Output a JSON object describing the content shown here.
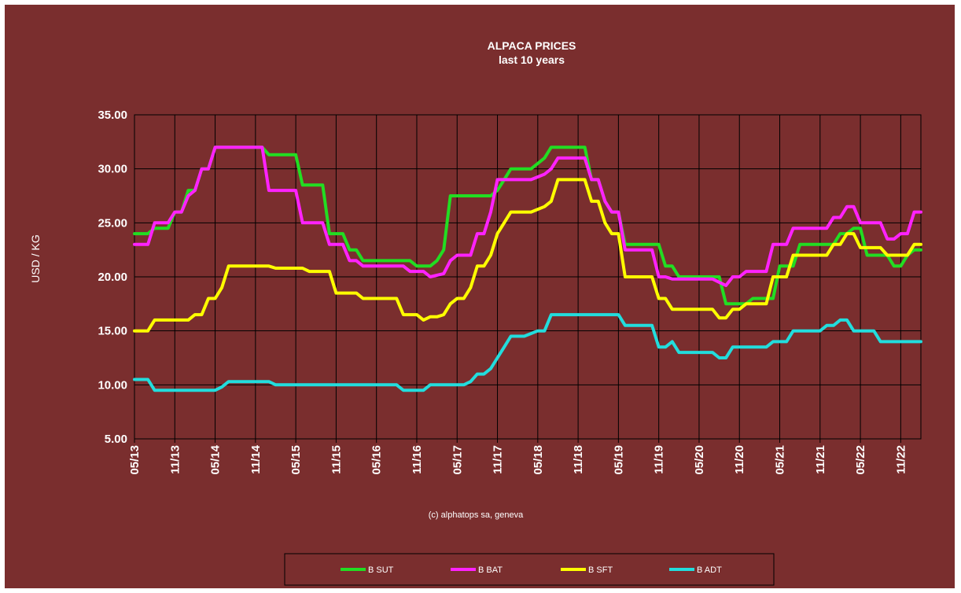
{
  "chart_data": {
    "type": "line",
    "title": "ALPACA PRICES",
    "subtitle": "last 10 years",
    "ylabel": "USD / KG",
    "xlabel": "",
    "credit": "(c) alphatops sa, geneva",
    "ylim": [
      5,
      35
    ],
    "yticks": [
      "5.00",
      "10.00",
      "15.00",
      "20.00",
      "25.00",
      "30.00",
      "35.00"
    ],
    "yticks_values": [
      5,
      10,
      15,
      20,
      25,
      30,
      35
    ],
    "xlim": [
      0,
      117
    ],
    "xticks": [
      "05/13",
      "11/13",
      "05/14",
      "11/14",
      "05/15",
      "11/15",
      "05/16",
      "11/16",
      "05/17",
      "11/17",
      "05/18",
      "11/18",
      "05/19",
      "11/19",
      "05/20",
      "11/20",
      "05/21",
      "11/21",
      "05/22",
      "11/22"
    ],
    "grid": true,
    "legend_position": "bottom",
    "background": "#7a2e2e",
    "series": [
      {
        "name": "B SUT",
        "color": "#22dd22",
        "points": [
          [
            0,
            24
          ],
          [
            2,
            24
          ],
          [
            3,
            24.5
          ],
          [
            5,
            24.5
          ],
          [
            6,
            26
          ],
          [
            7,
            26
          ],
          [
            8,
            28
          ],
          [
            9,
            28
          ],
          [
            10,
            30
          ],
          [
            11,
            30
          ],
          [
            12,
            32
          ],
          [
            19,
            32
          ],
          [
            20,
            31.3
          ],
          [
            24,
            31.3
          ],
          [
            25,
            28.5
          ],
          [
            28,
            28.5
          ],
          [
            29,
            24
          ],
          [
            31,
            24
          ],
          [
            32,
            22.5
          ],
          [
            33,
            22.5
          ],
          [
            34,
            21.5
          ],
          [
            41,
            21.5
          ],
          [
            42,
            21
          ],
          [
            44,
            21
          ],
          [
            45,
            21.5
          ],
          [
            46,
            22.5
          ],
          [
            47,
            27.5
          ],
          [
            53,
            27.5
          ],
          [
            54,
            28
          ],
          [
            55,
            29
          ],
          [
            56,
            30
          ],
          [
            59,
            30
          ],
          [
            61,
            31
          ],
          [
            62,
            32
          ],
          [
            67,
            32
          ],
          [
            68,
            29
          ],
          [
            69,
            29
          ],
          [
            70,
            27
          ],
          [
            71,
            26
          ],
          [
            72,
            26
          ],
          [
            73,
            23
          ],
          [
            78,
            23
          ],
          [
            79,
            21
          ],
          [
            80,
            21
          ],
          [
            81,
            20
          ],
          [
            87,
            20
          ],
          [
            88,
            17.5
          ],
          [
            91,
            17.5
          ],
          [
            92,
            18
          ],
          [
            95,
            18
          ],
          [
            96,
            21
          ],
          [
            98,
            21
          ],
          [
            99,
            23
          ],
          [
            104,
            23
          ],
          [
            105,
            24
          ],
          [
            106,
            24
          ],
          [
            107,
            24.5
          ],
          [
            108,
            24.5
          ],
          [
            109,
            22
          ],
          [
            112,
            22
          ],
          [
            113,
            21
          ],
          [
            114,
            21
          ],
          [
            115,
            22
          ],
          [
            116,
            22.5
          ],
          [
            117,
            22.5
          ]
        ]
      },
      {
        "name": "B BAT",
        "color": "#ff22ff",
        "points": [
          [
            0,
            23
          ],
          [
            2,
            23
          ],
          [
            3,
            25
          ],
          [
            5,
            25
          ],
          [
            6,
            26
          ],
          [
            7,
            26
          ],
          [
            8,
            27.5
          ],
          [
            9,
            28
          ],
          [
            10,
            30
          ],
          [
            11,
            30
          ],
          [
            12,
            32
          ],
          [
            19,
            32
          ],
          [
            20,
            28
          ],
          [
            24,
            28
          ],
          [
            25,
            25
          ],
          [
            28,
            25
          ],
          [
            29,
            23
          ],
          [
            31,
            23
          ],
          [
            32,
            21.5
          ],
          [
            33,
            21.5
          ],
          [
            34,
            21
          ],
          [
            40,
            21
          ],
          [
            41,
            20.5
          ],
          [
            43,
            20.5
          ],
          [
            44,
            20
          ],
          [
            46,
            20.3
          ],
          [
            47,
            21.5
          ],
          [
            48,
            22
          ],
          [
            50,
            22
          ],
          [
            51,
            24
          ],
          [
            52,
            24
          ],
          [
            53,
            26
          ],
          [
            54,
            29
          ],
          [
            59,
            29
          ],
          [
            61,
            29.5
          ],
          [
            62,
            30
          ],
          [
            63,
            31
          ],
          [
            67,
            31
          ],
          [
            68,
            29
          ],
          [
            69,
            29
          ],
          [
            70,
            27
          ],
          [
            71,
            26
          ],
          [
            72,
            26
          ],
          [
            73,
            22.5
          ],
          [
            77,
            22.5
          ],
          [
            78,
            20
          ],
          [
            79,
            20
          ],
          [
            80,
            19.8
          ],
          [
            86,
            19.8
          ],
          [
            87,
            19.5
          ],
          [
            88,
            19.2
          ],
          [
            89,
            20
          ],
          [
            90,
            20
          ],
          [
            91,
            20.5
          ],
          [
            94,
            20.5
          ],
          [
            95,
            23
          ],
          [
            97,
            23
          ],
          [
            98,
            24.5
          ],
          [
            103,
            24.5
          ],
          [
            104,
            25.5
          ],
          [
            105,
            25.5
          ],
          [
            106,
            26.5
          ],
          [
            107,
            26.5
          ],
          [
            108,
            25
          ],
          [
            111,
            25
          ],
          [
            112,
            23.5
          ],
          [
            113,
            23.5
          ],
          [
            114,
            24
          ],
          [
            115,
            24
          ],
          [
            116,
            26
          ],
          [
            117,
            26
          ]
        ]
      },
      {
        "name": "B SFT",
        "color": "#ffff00",
        "points": [
          [
            0,
            15
          ],
          [
            2,
            15
          ],
          [
            3,
            16
          ],
          [
            6,
            16
          ],
          [
            8,
            16
          ],
          [
            9,
            16.5
          ],
          [
            10,
            16.5
          ],
          [
            11,
            18
          ],
          [
            12,
            18
          ],
          [
            13,
            19
          ],
          [
            14,
            21
          ],
          [
            20,
            21
          ],
          [
            21,
            20.8
          ],
          [
            25,
            20.8
          ],
          [
            26,
            20.5
          ],
          [
            29,
            20.5
          ],
          [
            30,
            18.5
          ],
          [
            33,
            18.5
          ],
          [
            34,
            18
          ],
          [
            39,
            18
          ],
          [
            40,
            16.5
          ],
          [
            42,
            16.5
          ],
          [
            43,
            16
          ],
          [
            44,
            16.3
          ],
          [
            45,
            16.3
          ],
          [
            46,
            16.5
          ],
          [
            47,
            17.5
          ],
          [
            48,
            18
          ],
          [
            49,
            18
          ],
          [
            50,
            19
          ],
          [
            51,
            21
          ],
          [
            52,
            21
          ],
          [
            53,
            22
          ],
          [
            54,
            24
          ],
          [
            55,
            25
          ],
          [
            56,
            26
          ],
          [
            59,
            26
          ],
          [
            61,
            26.5
          ],
          [
            62,
            27
          ],
          [
            63,
            29
          ],
          [
            67,
            29
          ],
          [
            68,
            27
          ],
          [
            69,
            27
          ],
          [
            70,
            25
          ],
          [
            71,
            24
          ],
          [
            72,
            24
          ],
          [
            73,
            20
          ],
          [
            77,
            20
          ],
          [
            78,
            18
          ],
          [
            79,
            18
          ],
          [
            80,
            17
          ],
          [
            86,
            17
          ],
          [
            87,
            16.2
          ],
          [
            88,
            16.2
          ],
          [
            89,
            17
          ],
          [
            90,
            17
          ],
          [
            91,
            17.5
          ],
          [
            94,
            17.5
          ],
          [
            95,
            20
          ],
          [
            97,
            20
          ],
          [
            98,
            22
          ],
          [
            103,
            22
          ],
          [
            104,
            23
          ],
          [
            105,
            23
          ],
          [
            106,
            24
          ],
          [
            107,
            24
          ],
          [
            108,
            22.7
          ],
          [
            111,
            22.7
          ],
          [
            112,
            22
          ],
          [
            115,
            22
          ],
          [
            116,
            23
          ],
          [
            117,
            23
          ]
        ]
      },
      {
        "name": "B ADT",
        "color": "#22dddd",
        "points": [
          [
            0,
            10.5
          ],
          [
            2,
            10.5
          ],
          [
            3,
            9.5
          ],
          [
            12,
            9.5
          ],
          [
            13,
            9.8
          ],
          [
            14,
            10.3
          ],
          [
            20,
            10.3
          ],
          [
            21,
            10
          ],
          [
            39,
            10
          ],
          [
            40,
            9.5
          ],
          [
            43,
            9.5
          ],
          [
            44,
            10
          ],
          [
            49,
            10
          ],
          [
            50,
            10.3
          ],
          [
            51,
            11
          ],
          [
            52,
            11
          ],
          [
            53,
            11.5
          ],
          [
            54,
            12.5
          ],
          [
            55,
            13.5
          ],
          [
            56,
            14.5
          ],
          [
            58,
            14.5
          ],
          [
            60,
            15
          ],
          [
            61,
            15
          ],
          [
            62,
            16.5
          ],
          [
            72,
            16.5
          ],
          [
            73,
            15.5
          ],
          [
            77,
            15.5
          ],
          [
            78,
            13.5
          ],
          [
            79,
            13.5
          ],
          [
            80,
            14
          ],
          [
            81,
            13
          ],
          [
            86,
            13
          ],
          [
            87,
            12.5
          ],
          [
            88,
            12.5
          ],
          [
            89,
            13.5
          ],
          [
            94,
            13.5
          ],
          [
            95,
            14
          ],
          [
            97,
            14
          ],
          [
            98,
            15
          ],
          [
            102,
            15
          ],
          [
            103,
            15.5
          ],
          [
            104,
            15.5
          ],
          [
            105,
            16
          ],
          [
            106,
            16
          ],
          [
            107,
            15
          ],
          [
            110,
            15
          ],
          [
            111,
            14
          ],
          [
            117,
            14
          ]
        ]
      }
    ]
  }
}
